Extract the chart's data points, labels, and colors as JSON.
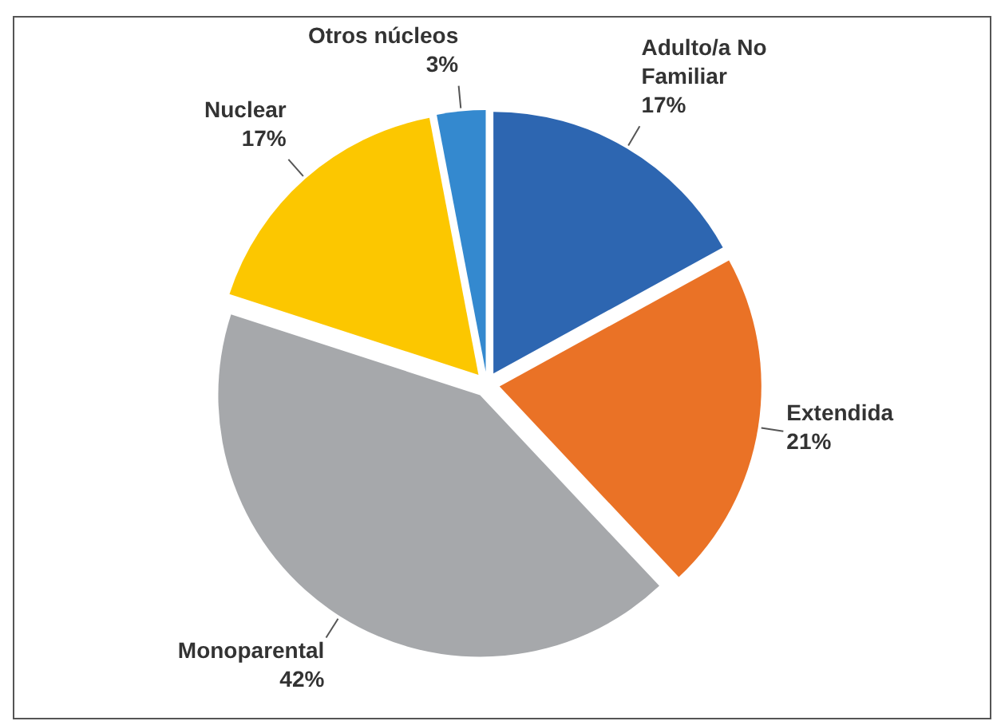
{
  "chart_data": {
    "type": "pie",
    "categories": [
      "Adulto/a No Familiar",
      "Extendida",
      "Monoparental",
      "Nuclear",
      "Otros núcleos"
    ],
    "values": [
      17,
      21,
      42,
      17,
      3
    ],
    "colors": [
      "#2d66b1",
      "#ea7226",
      "#a6a8ab",
      "#fcc700",
      "#3489cf"
    ],
    "value_labels": [
      "17%",
      "21%",
      "42%",
      "17%",
      "3%"
    ]
  }
}
